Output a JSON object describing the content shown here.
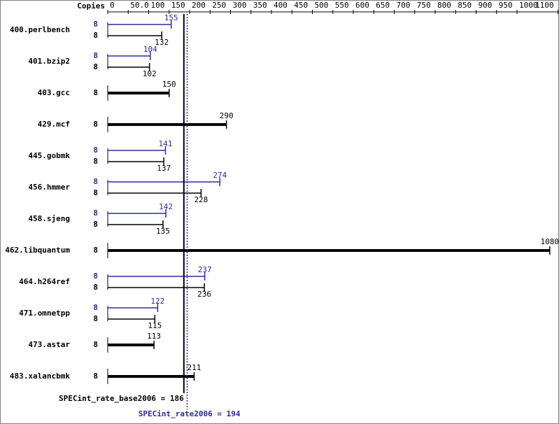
{
  "chart_data": {
    "type": "bar",
    "orientation": "horizontal",
    "copies_header": "Copies",
    "categories": [
      "400.perlbench",
      "401.bzip2",
      "403.gcc",
      "429.mcf",
      "445.gobmk",
      "456.hmmer",
      "458.sjeng",
      "462.libquantum",
      "464.h264ref",
      "471.omnetpp",
      "473.astar",
      "483.xalancbmk"
    ],
    "series": [
      {
        "color": "#2b2b9b",
        "values": [
          155,
          104,
          null,
          null,
          141,
          274,
          142,
          null,
          237,
          122,
          null,
          null
        ],
        "copies": [
          8,
          8,
          null,
          null,
          8,
          8,
          8,
          null,
          8,
          8,
          null,
          null
        ]
      },
      {
        "color": "#000000",
        "values": [
          132,
          102,
          150,
          290,
          137,
          228,
          135,
          1080,
          236,
          115,
          113,
          211
        ],
        "copies": [
          8,
          8,
          8,
          8,
          8,
          8,
          8,
          8,
          8,
          8,
          8,
          8
        ]
      }
    ],
    "xlim": [
      0,
      1100
    ],
    "xticks": [
      0,
      {
        "value": 50,
        "label": "50.0"
      },
      100,
      150,
      200,
      250,
      300,
      350,
      400,
      450,
      500,
      550,
      600,
      650,
      700,
      750,
      800,
      850,
      900,
      950,
      1000,
      1100
    ],
    "reference_lines": [
      {
        "label": "SPECint_rate_base2006 = 186",
        "value": 186,
        "color": "#000000",
        "style": "solid"
      },
      {
        "label": "SPECint_rate2006 = 194",
        "value": 194,
        "color": "#2b2b9b",
        "style": "dotted"
      }
    ]
  }
}
